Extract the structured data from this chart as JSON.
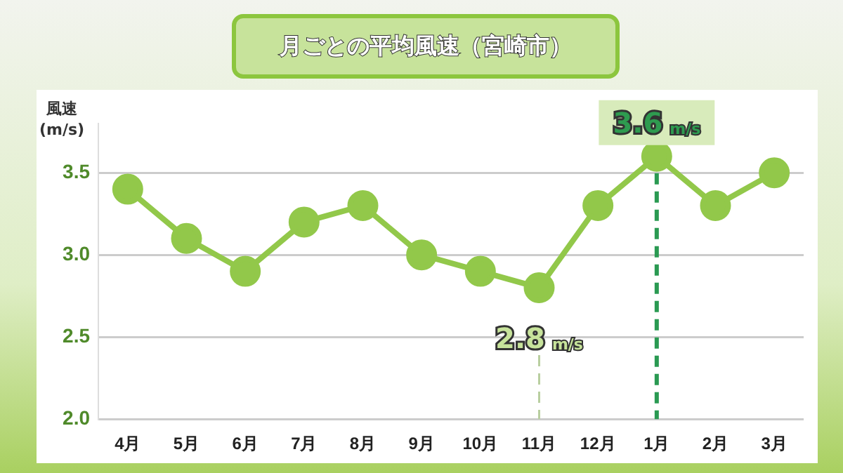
{
  "chart_data": {
    "type": "line",
    "title": "月ごとの平均風速（宮崎市）",
    "ylabel": "風速\n(m/s)",
    "categories": [
      "4月",
      "5月",
      "6月",
      "7月",
      "8月",
      "9月",
      "10月",
      "11月",
      "12月",
      "1月",
      "2月",
      "3月"
    ],
    "series": [
      {
        "color": "#92c84a",
        "values": [
          3.4,
          3.1,
          2.9,
          3.2,
          3.3,
          3.0,
          2.9,
          2.8,
          3.3,
          3.6,
          3.3,
          3.5
        ]
      }
    ],
    "ylim": [
      2.0,
      3.8
    ],
    "yticks": [
      {
        "value": 2,
        "label": "2.0"
      },
      {
        "value": 2.5,
        "label": "2.5"
      },
      {
        "value": 3,
        "label": "3.0"
      },
      {
        "value": 3.5,
        "label": "3.5"
      }
    ],
    "grid": "y",
    "legend": false,
    "marker": "circle",
    "line_style": "solid",
    "ref_lines": [
      {
        "axis": "x",
        "value": "11月",
        "color": "#b9cfa0",
        "line_style": "dashed"
      },
      {
        "axis": "x",
        "value": "1月",
        "color": "#2a9a52",
        "line_style": "dashed"
      }
    ],
    "annotations": [
      {
        "text": "2.8 m/s",
        "x": "11月",
        "y": 2.8
      },
      {
        "text": "3.6 m/s",
        "x": "1月",
        "y": 3.6
      }
    ]
  }
}
